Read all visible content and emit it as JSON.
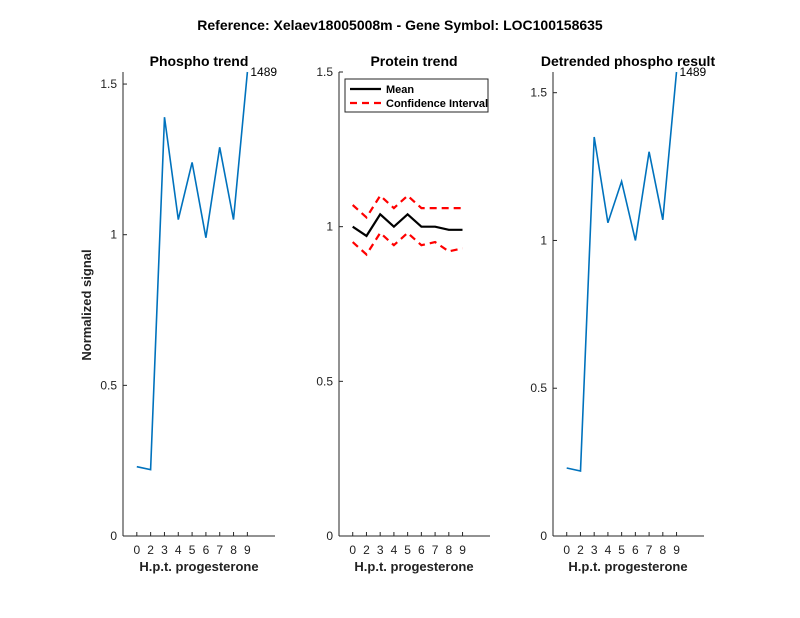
{
  "figure": {
    "title": "Reference:  Xelaev18005008m - Gene Symbol:  LOC100158635",
    "ylabel": "Normalized signal"
  },
  "chart_data": [
    {
      "type": "line",
      "title": "Phospho trend",
      "xlabel": "H.p.t. progesterone",
      "xlim": [
        -1,
        10
      ],
      "ylim": [
        0,
        1.54
      ],
      "xticks": [
        "0",
        "2",
        "3",
        "4",
        "5",
        "6",
        "7",
        "8",
        "9"
      ],
      "yticks": [
        {
          "value": 0,
          "label": "0"
        },
        {
          "value": 0.5,
          "label": "0.5"
        },
        {
          "value": 1,
          "label": "1"
        },
        {
          "value": 1.5,
          "label": "1.5"
        }
      ],
      "series": [
        {
          "color": "#0072BD",
          "dash": "none",
          "x": [
            0,
            1,
            2,
            3,
            4,
            5,
            6,
            7,
            8
          ],
          "y": [
            0.23,
            0.22,
            1.39,
            1.05,
            1.24,
            0.99,
            1.29,
            1.05,
            1.54
          ]
        }
      ],
      "annotation": {
        "text": "1489",
        "x": 8,
        "y": 1.54
      }
    },
    {
      "type": "line",
      "title": "Protein trend",
      "xlabel": "H.p.t. progesterone",
      "xlim": [
        -1,
        10
      ],
      "ylim": [
        0,
        1.5
      ],
      "xticks": [
        "0",
        "2",
        "3",
        "4",
        "5",
        "6",
        "7",
        "8",
        "9"
      ],
      "yticks": [
        {
          "value": 0,
          "label": "0"
        },
        {
          "value": 0.5,
          "label": "0.5"
        },
        {
          "value": 1,
          "label": "1"
        },
        {
          "value": 1.5,
          "label": "1.5"
        }
      ],
      "series": [
        {
          "name": "Mean",
          "color": "#000000",
          "dash": "none",
          "x": [
            0,
            1,
            2,
            3,
            4,
            5,
            6,
            7,
            8
          ],
          "y": [
            1.0,
            0.97,
            1.04,
            1.0,
            1.04,
            1.0,
            1.0,
            0.99,
            0.99
          ]
        },
        {
          "name": "Confidence Interval",
          "color": "#FF0000",
          "dash": "dashed",
          "x": [
            0,
            1,
            2,
            3,
            4,
            5,
            6,
            7,
            8
          ],
          "y": [
            1.07,
            1.03,
            1.1,
            1.06,
            1.1,
            1.06,
            1.06,
            1.06,
            1.06
          ]
        },
        {
          "name": "",
          "color": "#FF0000",
          "dash": "dashed",
          "x": [
            0,
            1,
            2,
            3,
            4,
            5,
            6,
            7,
            8
          ],
          "y": [
            0.95,
            0.91,
            0.98,
            0.94,
            0.98,
            0.94,
            0.95,
            0.92,
            0.93
          ]
        }
      ],
      "legend": {
        "placement": "top-right",
        "entries": [
          {
            "label": "Mean",
            "color": "#000000",
            "dash": "none"
          },
          {
            "label": "Confidence Interval",
            "color": "#FF0000",
            "dash": "dashed"
          }
        ]
      }
    },
    {
      "type": "line",
      "title": "Detrended phospho result",
      "xlabel": "H.p.t. progesterone",
      "xlim": [
        -1,
        10
      ],
      "ylim": [
        0,
        1.57
      ],
      "xticks": [
        "0",
        "2",
        "3",
        "4",
        "5",
        "6",
        "7",
        "8",
        "9"
      ],
      "yticks": [
        {
          "value": 0,
          "label": "0"
        },
        {
          "value": 0.5,
          "label": "0.5"
        },
        {
          "value": 1,
          "label": "1"
        },
        {
          "value": 1.5,
          "label": "1.5"
        }
      ],
      "series": [
        {
          "color": "#0072BD",
          "dash": "none",
          "x": [
            0,
            1,
            2,
            3,
            4,
            5,
            6,
            7,
            8
          ],
          "y": [
            0.23,
            0.22,
            1.35,
            1.06,
            1.2,
            1.0,
            1.3,
            1.07,
            1.57
          ]
        }
      ],
      "annotation": {
        "text": "1489",
        "x": 8,
        "y": 1.57
      }
    }
  ]
}
